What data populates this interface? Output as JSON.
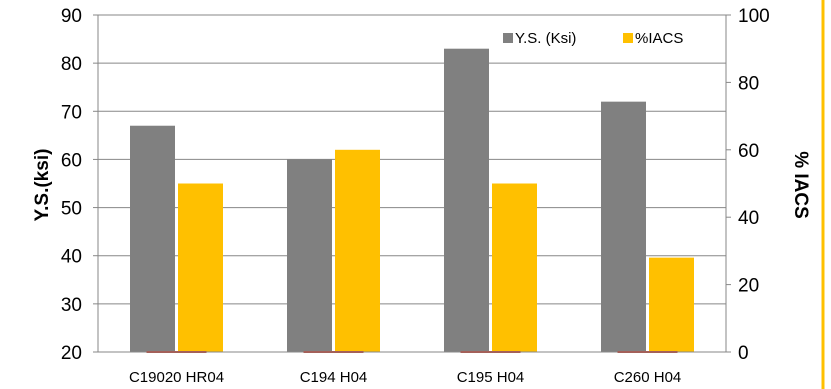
{
  "chart_data": {
    "type": "bar",
    "categories": [
      "C19020 HR04",
      "C194 H04",
      "C195 H04",
      "C260 H04"
    ],
    "series": [
      {
        "name": "Y.S. (Ksi)",
        "axis": "left",
        "color": "#808080",
        "values": [
          67,
          60,
          83,
          72
        ]
      },
      {
        "name": "%IACS",
        "axis": "right",
        "color": "#FFC000",
        "values": [
          50,
          60,
          50,
          28
        ]
      }
    ],
    "ylabel": "Y.S.(ksi)",
    "ylabel_right": "% IACS",
    "ylim": [
      20,
      90
    ],
    "yticks": [
      20,
      30,
      40,
      50,
      60,
      70,
      80,
      90
    ],
    "ylim_right": [
      0,
      100
    ],
    "yticks_right": [
      0,
      20,
      40,
      60,
      80,
      100
    ],
    "grid": true,
    "legend_position": "top-right",
    "right_border_color": "#FFC000"
  }
}
